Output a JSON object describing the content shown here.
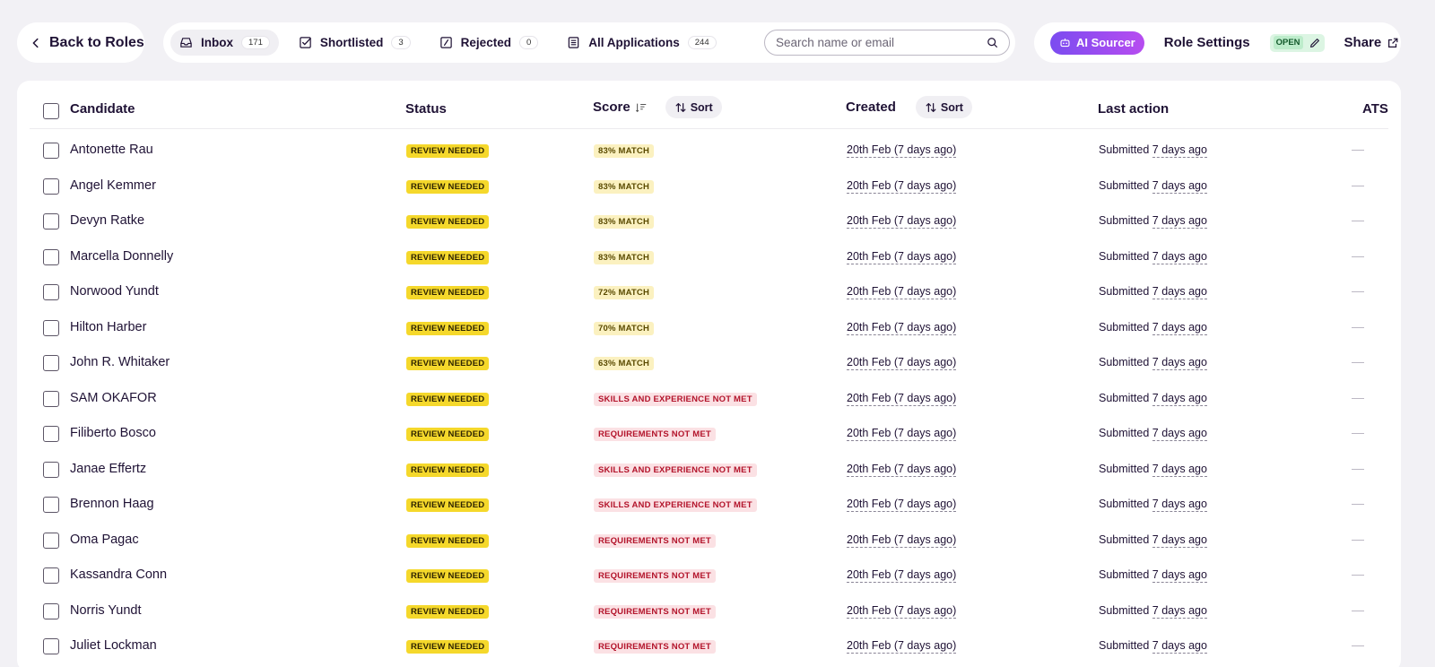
{
  "back": {
    "label": "Back to Roles"
  },
  "tabs": [
    {
      "label": "Inbox",
      "count": "171",
      "icon": "inbox-icon"
    },
    {
      "label": "Shortlisted",
      "count": "3",
      "icon": "checkbox-check-icon"
    },
    {
      "label": "Rejected",
      "count": "0",
      "icon": "checkbox-slash-icon"
    },
    {
      "label": "All Applications",
      "count": "244",
      "icon": "list-icon"
    }
  ],
  "search": {
    "placeholder": "Search name or email"
  },
  "actions": {
    "ai_sourcer": "AI Sourcer",
    "role_settings": "Role Settings",
    "open_badge": "OPEN",
    "share": "Share"
  },
  "table": {
    "headers": {
      "candidate": "Candidate",
      "status": "Status",
      "score": "Score",
      "score_sort": "Sort",
      "created": "Created",
      "created_sort": "Sort",
      "last_action": "Last action",
      "ats": "ATS"
    },
    "rows": [
      {
        "name": "Antonette Rau",
        "status": "REVIEW NEEDED",
        "score": "83% MATCH",
        "score_type": "match",
        "created": "20th Feb (7 days ago)",
        "action": "Submitted",
        "ago": "7 days ago",
        "ats": "—"
      },
      {
        "name": "Angel Kemmer",
        "status": "REVIEW NEEDED",
        "score": "83% MATCH",
        "score_type": "match",
        "created": "20th Feb (7 days ago)",
        "action": "Submitted",
        "ago": "7 days ago",
        "ats": "—"
      },
      {
        "name": "Devyn Ratke",
        "status": "REVIEW NEEDED",
        "score": "83% MATCH",
        "score_type": "match",
        "created": "20th Feb (7 days ago)",
        "action": "Submitted",
        "ago": "7 days ago",
        "ats": "—"
      },
      {
        "name": "Marcella Donnelly",
        "status": "REVIEW NEEDED",
        "score": "83% MATCH",
        "score_type": "match",
        "created": "20th Feb (7 days ago)",
        "action": "Submitted",
        "ago": "7 days ago",
        "ats": "—"
      },
      {
        "name": "Norwood Yundt",
        "status": "REVIEW NEEDED",
        "score": "72% MATCH",
        "score_type": "match",
        "created": "20th Feb (7 days ago)",
        "action": "Submitted",
        "ago": "7 days ago",
        "ats": "—"
      },
      {
        "name": "Hilton Harber",
        "status": "REVIEW NEEDED",
        "score": "70% MATCH",
        "score_type": "match",
        "created": "20th Feb (7 days ago)",
        "action": "Submitted",
        "ago": "7 days ago",
        "ats": "—"
      },
      {
        "name": "John R. Whitaker",
        "status": "REVIEW NEEDED",
        "score": "63% MATCH",
        "score_type": "match",
        "created": "20th Feb (7 days ago)",
        "action": "Submitted",
        "ago": "7 days ago",
        "ats": "—"
      },
      {
        "name": "SAM OKAFOR",
        "status": "REVIEW NEEDED",
        "score": "SKILLS AND EXPERIENCE NOT MET",
        "score_type": "fail",
        "created": "20th Feb (7 days ago)",
        "action": "Submitted",
        "ago": "7 days ago",
        "ats": "—"
      },
      {
        "name": "Filiberto Bosco",
        "status": "REVIEW NEEDED",
        "score": "REQUIREMENTS NOT MET",
        "score_type": "fail",
        "created": "20th Feb (7 days ago)",
        "action": "Submitted",
        "ago": "7 days ago",
        "ats": "—"
      },
      {
        "name": "Janae Effertz",
        "status": "REVIEW NEEDED",
        "score": "SKILLS AND EXPERIENCE NOT MET",
        "score_type": "fail",
        "created": "20th Feb (7 days ago)",
        "action": "Submitted",
        "ago": "7 days ago",
        "ats": "—"
      },
      {
        "name": "Brennon Haag",
        "status": "REVIEW NEEDED",
        "score": "SKILLS AND EXPERIENCE NOT MET",
        "score_type": "fail",
        "created": "20th Feb (7 days ago)",
        "action": "Submitted",
        "ago": "7 days ago",
        "ats": "—"
      },
      {
        "name": "Oma Pagac",
        "status": "REVIEW NEEDED",
        "score": "REQUIREMENTS NOT MET",
        "score_type": "fail",
        "created": "20th Feb (7 days ago)",
        "action": "Submitted",
        "ago": "7 days ago",
        "ats": "—"
      },
      {
        "name": "Kassandra Conn",
        "status": "REVIEW NEEDED",
        "score": "REQUIREMENTS NOT MET",
        "score_type": "fail",
        "created": "20th Feb (7 days ago)",
        "action": "Submitted",
        "ago": "7 days ago",
        "ats": "—"
      },
      {
        "name": "Norris Yundt",
        "status": "REVIEW NEEDED",
        "score": "REQUIREMENTS NOT MET",
        "score_type": "fail",
        "created": "20th Feb (7 days ago)",
        "action": "Submitted",
        "ago": "7 days ago",
        "ats": "—"
      },
      {
        "name": "Juliet Lockman",
        "status": "REVIEW NEEDED",
        "score": "REQUIREMENTS NOT MET",
        "score_type": "fail",
        "created": "20th Feb (7 days ago)",
        "action": "Submitted",
        "ago": "7 days ago",
        "ats": "—"
      }
    ]
  },
  "colors": {
    "background": "#f2f1f5",
    "status_badge": "#f5d82b",
    "match_badge": "#fbf1c0",
    "fail_badge": "#fbe1e4",
    "fail_text": "#b3142b",
    "ai_gradient_start": "#7b4cf0",
    "ai_gradient_end": "#b74cf0",
    "open_badge": "#bdeccb"
  }
}
